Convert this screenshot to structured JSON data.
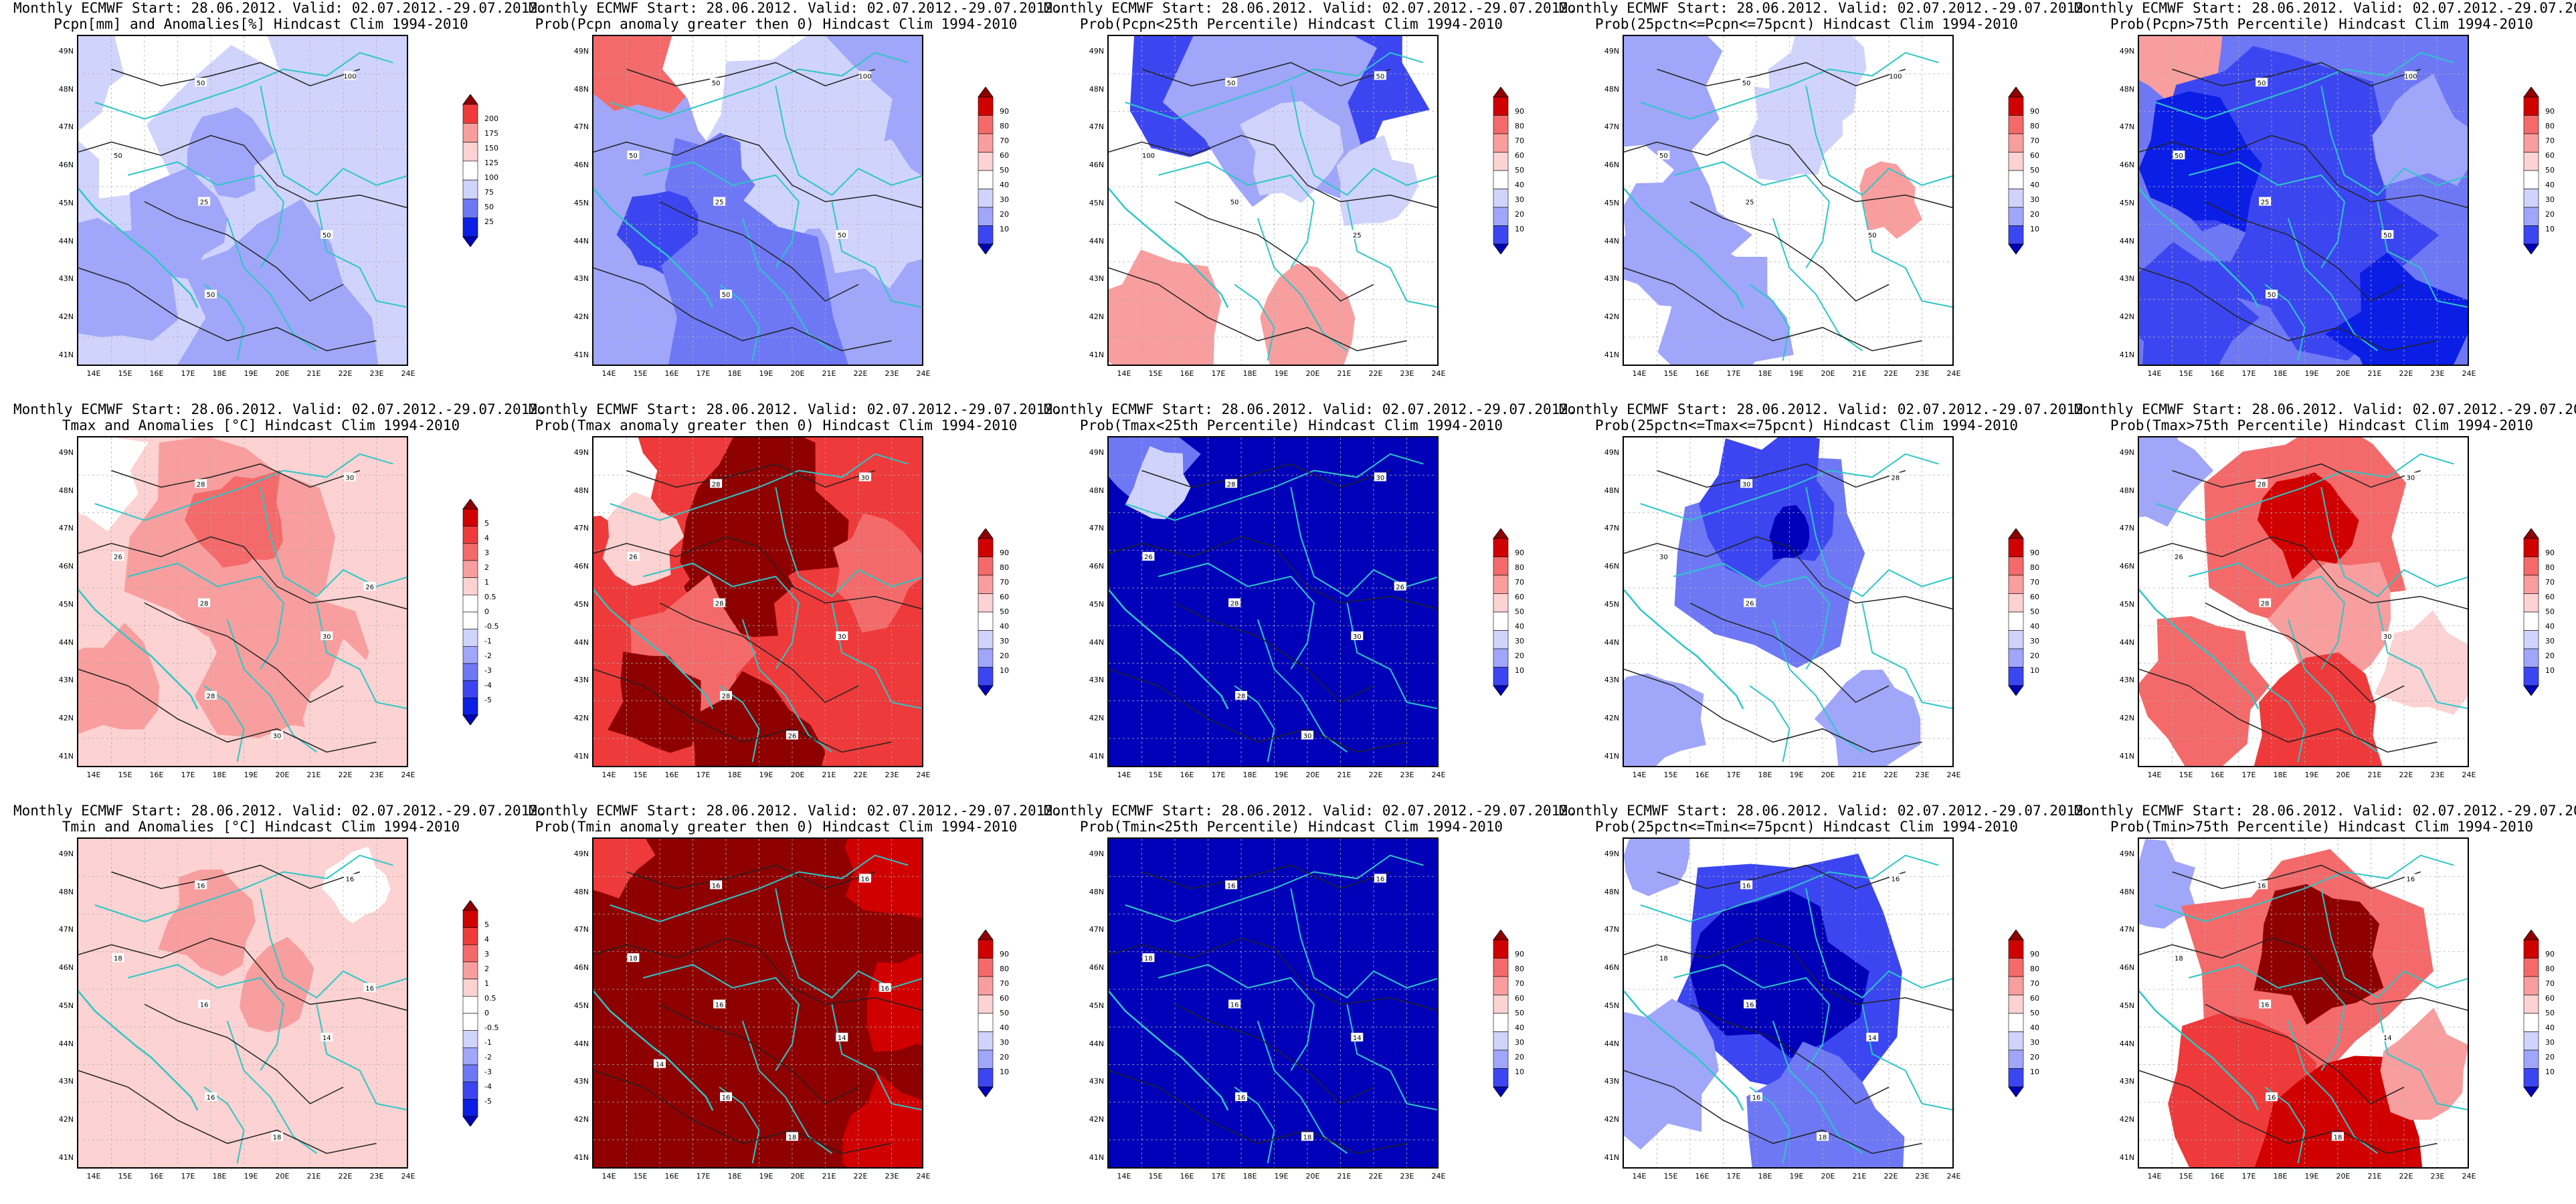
{
  "header_line": "Monthly ECMWF Start: 28.06.2012. Valid: 02.07.2012.-29.07.2012.",
  "axes": {
    "lat_labels": [
      "49N",
      "48N",
      "47N",
      "46N",
      "45N",
      "44N",
      "43N",
      "42N",
      "41N"
    ],
    "lon_labels": [
      "14E",
      "15E",
      "16E",
      "17E",
      "18E",
      "19E",
      "20E",
      "21E",
      "22E",
      "23E",
      "24E"
    ]
  },
  "palettes": {
    "diverging_cool_to_warm": [
      "#0000b8",
      "#0b1ee6",
      "#3c46f0",
      "#6e78f5",
      "#a0a6fa",
      "#d0d3fc",
      "#ffffff",
      "#fcd2d2",
      "#f89e9e",
      "#f46a6a",
      "#ee3a3a",
      "#d00000",
      "#8e0000"
    ]
  },
  "panels": [
    {
      "row": 0,
      "col": 0,
      "subtitle": "Pcpn[mm] and Anomalies[%] Hindcast Clim 1994-2010",
      "scale": "anom_pct",
      "cbar_ticks": [
        "200",
        "175",
        "150",
        "125",
        "100",
        "75",
        "50",
        "25"
      ],
      "field": "pcpn_anom",
      "contour_labels": [
        "50",
        "100",
        "50",
        "25",
        "50",
        "50"
      ]
    },
    {
      "row": 0,
      "col": 1,
      "subtitle": "Prob(Pcpn anomaly greater then 0) Hindcast Clim 1994-2010",
      "scale": "prob",
      "cbar_ticks": [
        "90",
        "80",
        "70",
        "60",
        "50",
        "40",
        "30",
        "20",
        "10"
      ],
      "field": "pcpn_pos",
      "contour_labels": [
        "50",
        "100",
        "50",
        "25",
        "50",
        "50"
      ]
    },
    {
      "row": 0,
      "col": 2,
      "subtitle": "Prob(Pcpn<25th Percentile) Hindcast Clim 1994-2010",
      "scale": "prob",
      "cbar_ticks": [
        "90",
        "80",
        "70",
        "60",
        "50",
        "40",
        "30",
        "20",
        "10"
      ],
      "field": "pcpn_low",
      "contour_labels": [
        "50",
        "50",
        "100",
        "50",
        "25"
      ]
    },
    {
      "row": 0,
      "col": 3,
      "subtitle": "Prob(25pctn<=Pcpn<=75pcnt) Hindcast Clim 1994-2010",
      "scale": "prob",
      "cbar_ticks": [
        "90",
        "80",
        "70",
        "60",
        "50",
        "40",
        "30",
        "20",
        "10"
      ],
      "field": "pcpn_mid",
      "contour_labels": [
        "50",
        "100",
        "50",
        "25",
        "50"
      ]
    },
    {
      "row": 0,
      "col": 4,
      "subtitle": "Prob(Pcpn>75th Percentile) Hindcast Clim 1994-2010",
      "scale": "prob",
      "cbar_ticks": [
        "90",
        "80",
        "70",
        "60",
        "50",
        "40",
        "30",
        "20",
        "10"
      ],
      "field": "pcpn_high",
      "contour_labels": [
        "50",
        "100",
        "50",
        "25",
        "50",
        "50"
      ]
    },
    {
      "row": 1,
      "col": 0,
      "subtitle": "Tmax and Anomalies [°C] Hindcast Clim 1994-2010",
      "scale": "anom_c",
      "cbar_ticks": [
        "5",
        "4",
        "3",
        "2",
        "1",
        "0.5",
        "0",
        "-0.5",
        "-1",
        "-2",
        "-3",
        "-4",
        "-5"
      ],
      "field": "tmax_anom",
      "contour_labels": [
        "28",
        "30",
        "26",
        "28",
        "30",
        "28",
        "30",
        "26"
      ]
    },
    {
      "row": 1,
      "col": 1,
      "subtitle": "Prob(Tmax anomaly greater then 0) Hindcast Clim 1994-2010",
      "scale": "prob",
      "cbar_ticks": [
        "90",
        "80",
        "70",
        "60",
        "50",
        "40",
        "30",
        "20",
        "10"
      ],
      "field": "tmax_pos",
      "contour_labels": [
        "28",
        "30",
        "26",
        "28",
        "30",
        "28",
        "26"
      ]
    },
    {
      "row": 1,
      "col": 2,
      "subtitle": "Prob(Tmax<25th Percentile) Hindcast Clim 1994-2010",
      "scale": "prob",
      "cbar_ticks": [
        "90",
        "80",
        "70",
        "60",
        "50",
        "40",
        "30",
        "20",
        "10"
      ],
      "field": "tmax_low",
      "contour_labels": [
        "28",
        "30",
        "26",
        "28",
        "30",
        "28",
        "30",
        "26"
      ]
    },
    {
      "row": 1,
      "col": 3,
      "subtitle": "Prob(25pctn<=Tmax<=75pcnt) Hindcast Clim 1994-2010",
      "scale": "prob",
      "cbar_ticks": [
        "90",
        "80",
        "70",
        "60",
        "50",
        "40",
        "30",
        "20",
        "10"
      ],
      "field": "tmax_mid",
      "contour_labels": [
        "30",
        "28",
        "30",
        "26"
      ]
    },
    {
      "row": 1,
      "col": 4,
      "subtitle": "Prob(Tmax>75th Percentile) Hindcast Clim 1994-2010",
      "scale": "prob",
      "cbar_ticks": [
        "90",
        "80",
        "70",
        "60",
        "50",
        "40",
        "30",
        "20",
        "10"
      ],
      "field": "tmax_high",
      "contour_labels": [
        "28",
        "30",
        "26",
        "28",
        "30"
      ]
    },
    {
      "row": 2,
      "col": 0,
      "subtitle": "Tmin and Anomalies [°C] Hindcast Clim 1994-2010",
      "scale": "anom_c",
      "cbar_ticks": [
        "5",
        "4",
        "3",
        "2",
        "1",
        "0.5",
        "0",
        "-0.5",
        "-1",
        "-2",
        "-3",
        "-4",
        "-5"
      ],
      "field": "tmin_anom",
      "contour_labels": [
        "16",
        "16",
        "18",
        "16",
        "14",
        "16",
        "18",
        "16"
      ]
    },
    {
      "row": 2,
      "col": 1,
      "subtitle": "Prob(Tmin anomaly greater then 0) Hindcast Clim 1994-2010",
      "scale": "prob",
      "cbar_ticks": [
        "90",
        "80",
        "70",
        "60",
        "50",
        "40",
        "30",
        "20",
        "10"
      ],
      "field": "tmin_pos",
      "contour_labels": [
        "16",
        "16",
        "18",
        "16",
        "14",
        "16",
        "18",
        "16",
        "14"
      ]
    },
    {
      "row": 2,
      "col": 2,
      "subtitle": "Prob(Tmin<25th Percentile) Hindcast Clim 1994-2010",
      "scale": "prob",
      "cbar_ticks": [
        "90",
        "80",
        "70",
        "60",
        "50",
        "40",
        "30",
        "20",
        "10"
      ],
      "field": "tmin_low",
      "contour_labels": [
        "16",
        "16",
        "18",
        "16",
        "14",
        "16",
        "18"
      ]
    },
    {
      "row": 2,
      "col": 3,
      "subtitle": "Prob(25pctn<=Tmin<=75pcnt) Hindcast Clim 1994-2010",
      "scale": "prob",
      "cbar_ticks": [
        "90",
        "80",
        "70",
        "60",
        "50",
        "40",
        "30",
        "20",
        "10"
      ],
      "field": "tmin_mid",
      "contour_labels": [
        "16",
        "16",
        "18",
        "16",
        "14",
        "16",
        "18"
      ]
    },
    {
      "row": 2,
      "col": 4,
      "subtitle": "Prob(Tmin>75th Percentile) Hindcast Clim 1994-2010",
      "scale": "prob",
      "cbar_ticks": [
        "90",
        "80",
        "70",
        "60",
        "50",
        "40",
        "30",
        "20",
        "10"
      ],
      "field": "tmin_high",
      "contour_labels": [
        "16",
        "16",
        "18",
        "16",
        "14",
        "16",
        "18"
      ]
    }
  ]
}
